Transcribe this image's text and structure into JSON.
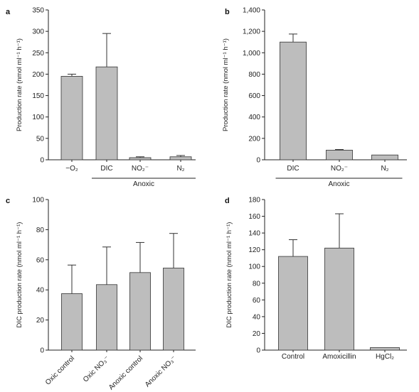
{
  "chart_data": [
    {
      "panel": "a",
      "type": "bar",
      "ylabel": "Production rate (nmol ml⁻¹ h⁻¹)",
      "ylim": [
        0,
        350
      ],
      "yticks": [
        0,
        50,
        100,
        150,
        200,
        250,
        300,
        350
      ],
      "ytick_labels": [
        "0",
        "50",
        "100",
        "150",
        "200",
        "250",
        "300",
        "350"
      ],
      "categories": [
        "−O₂",
        "DIC",
        "NO₂⁻",
        "N₂"
      ],
      "values": [
        195,
        217,
        5,
        7
      ],
      "errors": [
        5,
        78,
        2,
        3
      ],
      "group_label": "Anoxic",
      "group_range": [
        1,
        3
      ]
    },
    {
      "panel": "b",
      "type": "bar",
      "ylabel": "Production rate (nmol ml⁻¹ h⁻¹)",
      "ylim": [
        0,
        1400
      ],
      "yticks": [
        0,
        200,
        400,
        600,
        800,
        1000,
        1200,
        1400
      ],
      "ytick_labels": [
        "0",
        "200",
        "400",
        "600",
        "800",
        "1,000",
        "1,200",
        "1,400"
      ],
      "categories": [
        "DIC",
        "NO₂⁻",
        "N₂"
      ],
      "values": [
        1100,
        90,
        45
      ],
      "errors": [
        75,
        6,
        0
      ],
      "group_label": "Anoxic",
      "group_range": [
        0,
        2
      ]
    },
    {
      "panel": "c",
      "type": "bar",
      "ylabel": "DIC production rate (nmol ml⁻¹ h⁻¹)",
      "ylim": [
        0,
        100
      ],
      "yticks": [
        0,
        20,
        40,
        60,
        80,
        100
      ],
      "ytick_labels": [
        "0",
        "20",
        "40",
        "60",
        "80",
        "100"
      ],
      "categories": [
        "Oxic control",
        "Oxic NO₃⁻",
        "Anoxic control",
        "Anoxic NO₃⁻"
      ],
      "values": [
        37.5,
        43.5,
        51.5,
        54.5
      ],
      "errors": [
        19,
        25,
        20,
        23
      ],
      "rotate_labels": true
    },
    {
      "panel": "d",
      "type": "bar",
      "ylabel": "DIC production rate (nmol ml⁻¹ h⁻¹)",
      "ylim": [
        0,
        180
      ],
      "yticks": [
        0,
        20,
        40,
        60,
        80,
        100,
        120,
        140,
        160,
        180
      ],
      "ytick_labels": [
        "0",
        "20",
        "40",
        "60",
        "80",
        "100",
        "120",
        "140",
        "160",
        "180"
      ],
      "categories": [
        "Control",
        "Amoxicillin",
        "HgCl₂"
      ],
      "values": [
        112,
        122,
        3
      ],
      "errors": [
        20,
        41,
        0
      ]
    }
  ],
  "colors": {
    "bar_fill": "#bdbdbd",
    "stroke": "#333333"
  }
}
